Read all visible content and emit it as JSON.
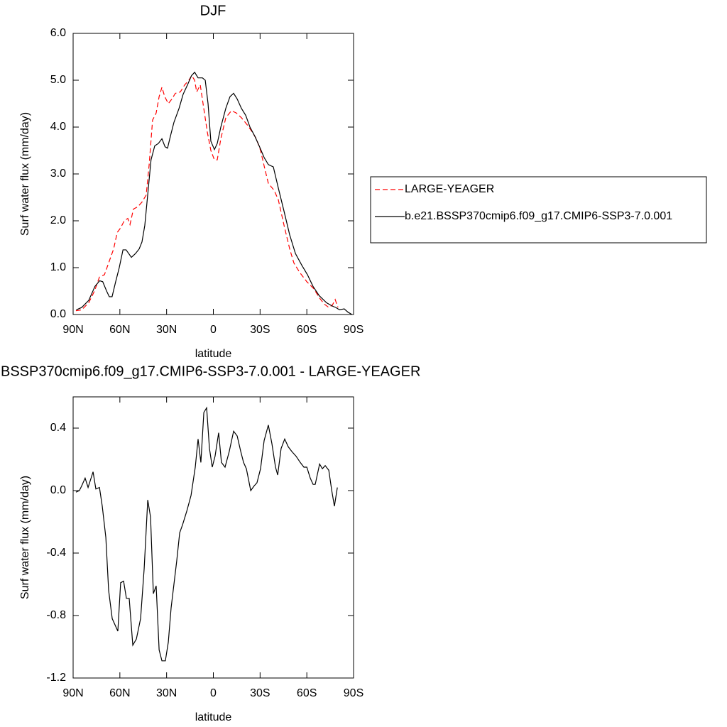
{
  "chart_data": [
    {
      "type": "line",
      "title": "DJF",
      "xlabel": "latitude",
      "ylabel": "Surf water flux (mm/day)",
      "xlim": [
        90,
        -90
      ],
      "xticks": [
        {
          "value": 90,
          "label": "90N"
        },
        {
          "value": 60,
          "label": "60N"
        },
        {
          "value": 30,
          "label": "30N"
        },
        0,
        {
          "value": -30,
          "label": "30S"
        },
        {
          "value": -60,
          "label": "60S"
        },
        {
          "value": -90,
          "label": "90S"
        }
      ],
      "ylim": [
        0,
        6
      ],
      "yticks": [
        {
          "value": 0,
          "label": "0.0"
        },
        {
          "value": 1,
          "label": "1.0"
        },
        {
          "value": 2,
          "label": "2.0"
        },
        {
          "value": 3,
          "label": "3.0"
        },
        {
          "value": 4,
          "label": "4.0"
        },
        {
          "value": 5,
          "label": "5.0"
        },
        {
          "value": 6,
          "label": "6.0"
        }
      ],
      "legend": "right",
      "series": [
        {
          "name": "LARGE-YEAGER",
          "color": "#ff0000",
          "dashed": true,
          "x": [
            88.2,
            84.5,
            80,
            76.3,
            73.1,
            69.9,
            67.2,
            64,
            61.7,
            59.5,
            57.2,
            54.9,
            53.5,
            51.3,
            48.5,
            45.8,
            43.1,
            41.2,
            39,
            36.7,
            34.8,
            33,
            31.2,
            28.9,
            26.6,
            24.4,
            21.2,
            18.4,
            15.7,
            13.9,
            12,
            10.7,
            8.4,
            6.6,
            3.9,
            1.6,
            -0.7,
            -2.5,
            -4.8,
            -8,
            -11.6,
            -14.8,
            -18,
            -21.7,
            -24.9,
            -27.6,
            -30.3,
            -33.1,
            -35.3,
            -39,
            -41.7,
            -45.4,
            -49,
            -51.7,
            -55.4,
            -60,
            -64.5,
            -68.2,
            -71.3,
            -74.1,
            -76.4,
            -78.2,
            -80
          ],
          "values": [
            0.08,
            0.1,
            0.25,
            0.5,
            0.8,
            0.85,
            1.1,
            1.4,
            1.75,
            1.85,
            2.0,
            2.05,
            1.92,
            2.25,
            2.3,
            2.4,
            2.55,
            3.2,
            4.15,
            4.3,
            4.65,
            4.85,
            4.65,
            4.5,
            4.6,
            4.72,
            4.75,
            4.9,
            5.0,
            5.1,
            5.0,
            4.75,
            4.9,
            4.5,
            3.9,
            3.5,
            3.3,
            3.3,
            3.75,
            4.2,
            4.35,
            4.3,
            4.2,
            4.05,
            3.9,
            3.75,
            3.5,
            3.1,
            2.8,
            2.65,
            2.45,
            1.9,
            1.4,
            1.1,
            0.9,
            0.7,
            0.55,
            0.35,
            0.22,
            0.15,
            0.2,
            0.32,
            0.15
          ]
        },
        {
          "name": "b.e21.BSSP370cmip6.f09_g17.CMIP6-SSP3-7.0.001",
          "color": "#000000",
          "dashed": false,
          "x": [
            88,
            84.5,
            80,
            76,
            73,
            71,
            68.5,
            66.8,
            65,
            62.7,
            60.4,
            58,
            56,
            52.6,
            50,
            47.6,
            45.8,
            44,
            42,
            40,
            37.6,
            35.3,
            33,
            31,
            29.4,
            27.6,
            25.3,
            22,
            19.4,
            16.6,
            14,
            12,
            9.8,
            7,
            5.2,
            3.4,
            1.6,
            -0.7,
            -2.5,
            -4.8,
            -8,
            -10.7,
            -13,
            -15.3,
            -18,
            -20.8,
            -23.5,
            -26.7,
            -29.4,
            -32.6,
            -35.3,
            -38.5,
            -41.7,
            -45.4,
            -49,
            -52.7,
            -56.8,
            -60.4,
            -64,
            -68,
            -72.7,
            -76.4,
            -78.6,
            -81,
            -84,
            -86.4,
            -89
          ],
          "values": [
            0.1,
            0.15,
            0.3,
            0.6,
            0.72,
            0.7,
            0.5,
            0.38,
            0.38,
            0.7,
            1.0,
            1.38,
            1.38,
            1.22,
            1.3,
            1.4,
            1.55,
            1.9,
            2.6,
            3.3,
            3.6,
            3.65,
            3.75,
            3.58,
            3.55,
            3.8,
            4.1,
            4.4,
            4.7,
            4.9,
            5.1,
            5.17,
            5.05,
            5.05,
            5.0,
            4.5,
            3.7,
            3.52,
            3.65,
            4.0,
            4.4,
            4.65,
            4.72,
            4.6,
            4.4,
            4.25,
            4.0,
            3.8,
            3.6,
            3.35,
            3.2,
            3.15,
            2.7,
            2.2,
            1.7,
            1.3,
            1.05,
            0.85,
            0.6,
            0.4,
            0.25,
            0.18,
            0.15,
            0.1,
            0.12,
            0.05,
            0.0
          ]
        }
      ]
    },
    {
      "type": "line",
      "title": "BSSP370cmip6.f09_g17.CMIP6-SSP3-7.0.001 - LARGE-YEAGER",
      "xlabel": "latitude",
      "ylabel": "Surf water flux (mm/day)",
      "xlim": [
        90,
        -90
      ],
      "xticks": [
        {
          "value": 90,
          "label": "90N"
        },
        {
          "value": 60,
          "label": "60N"
        },
        {
          "value": 30,
          "label": "30N"
        },
        0,
        {
          "value": -30,
          "label": "30S"
        },
        {
          "value": -60,
          "label": "60S"
        },
        {
          "value": -90,
          "label": "90S"
        }
      ],
      "ylim": [
        -1.2,
        0.6
      ],
      "yticks": [
        -1.2,
        -0.8,
        -0.4,
        {
          "value": 0,
          "label": "0.0"
        },
        0.4
      ],
      "series": [
        {
          "color": "#000000",
          "dashed": false,
          "x": [
            88.2,
            86,
            84.5,
            82.3,
            80.4,
            77.2,
            75.4,
            73.1,
            71.3,
            69,
            67.2,
            64.9,
            61.3,
            59.5,
            57.6,
            55.8,
            54,
            51.7,
            49.4,
            46.7,
            44.4,
            42.1,
            40.3,
            38.5,
            36.7,
            34.8,
            33,
            30.8,
            28.9,
            27.1,
            23.5,
            21.6,
            19.8,
            17,
            14.3,
            11.6,
            9.8,
            8,
            6.1,
            4.3,
            2.5,
            0.7,
            -1.1,
            -3.4,
            -5.2,
            -7.5,
            -10.2,
            -13,
            -15.3,
            -17.6,
            -19.4,
            -21.2,
            -24,
            -26.2,
            -28,
            -30.3,
            -32.6,
            -35.3,
            -37.6,
            -39.9,
            -41.3,
            -43.5,
            -45.8,
            -48.1,
            -50.4,
            -53.1,
            -55.8,
            -58.1,
            -60,
            -62.2,
            -64,
            -65.4,
            -68.2,
            -70,
            -71.8,
            -74.1,
            -76,
            -77.7,
            -79.6
          ],
          "values": [
            -0.01,
            0.0,
            0.03,
            0.08,
            0.02,
            0.12,
            0.01,
            0.02,
            -0.1,
            -0.3,
            -0.64,
            -0.82,
            -0.9,
            -0.59,
            -0.58,
            -0.69,
            -0.69,
            -0.99,
            -0.95,
            -0.82,
            -0.5,
            -0.06,
            -0.17,
            -0.66,
            -0.61,
            -1.02,
            -1.09,
            -1.09,
            -0.97,
            -0.75,
            -0.45,
            -0.27,
            -0.22,
            -0.13,
            -0.03,
            0.15,
            0.33,
            0.18,
            0.5,
            0.53,
            0.27,
            0.15,
            0.22,
            0.37,
            0.18,
            0.15,
            0.25,
            0.38,
            0.35,
            0.25,
            0.18,
            0.14,
            0.0,
            0.03,
            0.05,
            0.14,
            0.32,
            0.42,
            0.3,
            0.15,
            0.1,
            0.27,
            0.33,
            0.28,
            0.25,
            0.22,
            0.18,
            0.15,
            0.15,
            0.08,
            0.04,
            0.04,
            0.17,
            0.14,
            0.16,
            0.13,
            0.0,
            -0.1,
            0.02
          ]
        }
      ]
    }
  ]
}
